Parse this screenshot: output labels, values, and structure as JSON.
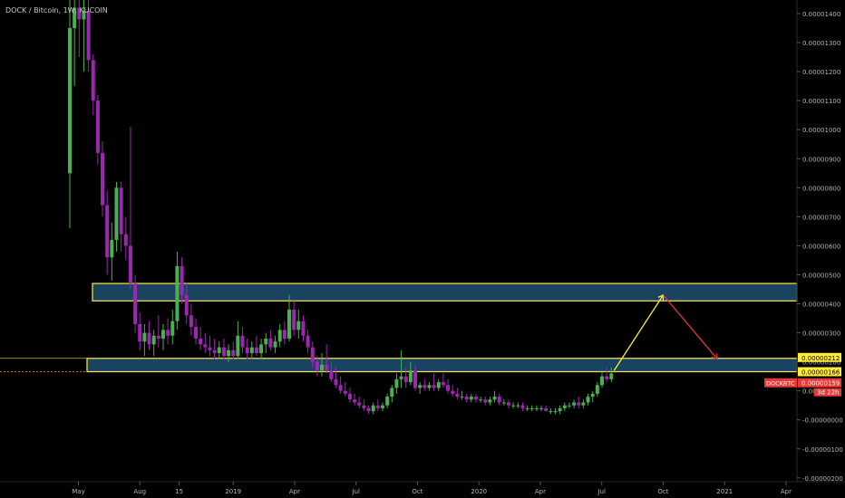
{
  "header": {
    "symbol_title": "DOCK / Bitcoin, 1W, KUCOIN"
  },
  "colors": {
    "background": "#000000",
    "bullish": "#4caf50",
    "bearish": "#9c27b0",
    "zone_fill": "#1f4f73",
    "zone_border": "#ffeb3b",
    "up_arrow": "#ffeb3b",
    "down_arrow": "#e53935",
    "price_tag_red": "#e53935",
    "price_tag_yellow": "#ffeb3b",
    "axis_text": "#b2b5be"
  },
  "chart_data": {
    "type": "candlestick",
    "title": "DOCK / Bitcoin, 1W, KUCOIN",
    "x_tick_labels": [
      "May",
      "Aug",
      "15",
      "2019",
      "Apr",
      "Jul",
      "Oct",
      "2020",
      "Apr",
      "Jul",
      "Oct",
      "2021",
      "Apr"
    ],
    "y_tick_labels": [
      "0.00001400",
      "0.00001300",
      "0.00001200",
      "0.00001100",
      "0.00001000",
      "0.00000900",
      "0.00000800",
      "0.00000700",
      "0.00000600",
      "0.00000500",
      "0.00000400",
      "0.00000300",
      "0.00000200",
      "0.00000100",
      "-0.00000000",
      "-0.00000100",
      "-0.00000200"
    ],
    "ylim": [
      -2.2e-06,
      1.45e-05
    ],
    "price_labels": {
      "zone_top": "0.00000212",
      "zone_bottom": "0.00000166",
      "symbol": "DOCKBTC",
      "last_price": "0.00000159",
      "countdown": "3d 22h"
    },
    "zones": [
      {
        "low": 4.1e-06,
        "high": 4.7e-06
      },
      {
        "low": 1.66e-06,
        "high": 2.12e-06
      }
    ],
    "projection": [
      {
        "from_x": 2020.55,
        "from_y": 1.7e-06,
        "to_x": 2020.75,
        "to_y": 4.3e-06,
        "direction": "up"
      },
      {
        "from_x": 2020.75,
        "from_y": 4.3e-06,
        "to_x": 2020.97,
        "to_y": 2.1e-06,
        "direction": "down"
      }
    ],
    "candles": [
      {
        "x": 2018.335,
        "o": 8.5e-06,
        "h": 1.45e-05,
        "l": 6.6e-06,
        "c": 1.35e-05
      },
      {
        "x": 2018.354,
        "o": 1.35e-05,
        "h": 1.48e-05,
        "l": 1.15e-05,
        "c": 1.42e-05
      },
      {
        "x": 2018.373,
        "o": 1.42e-05,
        "h": 1.5e-05,
        "l": 1.25e-05,
        "c": 1.38e-05
      },
      {
        "x": 2018.392,
        "o": 1.38e-05,
        "h": 1.5e-05,
        "l": 1.2e-05,
        "c": 1.41e-05
      },
      {
        "x": 2018.411,
        "o": 1.41e-05,
        "h": 1.46e-05,
        "l": 1.2e-05,
        "c": 1.24e-05
      },
      {
        "x": 2018.43,
        "o": 1.24e-05,
        "h": 1.26e-05,
        "l": 1.05e-05,
        "c": 1.1e-05
      },
      {
        "x": 2018.449,
        "o": 1.1e-05,
        "h": 1.12e-05,
        "l": 8.8e-06,
        "c": 9.2e-06
      },
      {
        "x": 2018.468,
        "o": 9.2e-06,
        "h": 9.6e-06,
        "l": 7e-06,
        "c": 7.4e-06
      },
      {
        "x": 2018.487,
        "o": 7.4e-06,
        "h": 7.9e-06,
        "l": 5e-06,
        "c": 5.6e-06
      },
      {
        "x": 2018.506,
        "o": 5.6e-06,
        "h": 6.8e-06,
        "l": 4.8e-06,
        "c": 6.2e-06
      },
      {
        "x": 2018.525,
        "o": 6.2e-06,
        "h": 8.2e-06,
        "l": 5.8e-06,
        "c": 8e-06
      },
      {
        "x": 2018.544,
        "o": 8e-06,
        "h": 8.2e-06,
        "l": 5.8e-06,
        "c": 6.4e-06
      },
      {
        "x": 2018.563,
        "o": 6.4e-06,
        "h": 7e-06,
        "l": 5.5e-06,
        "c": 6e-06
      },
      {
        "x": 2018.582,
        "o": 6e-06,
        "h": 1.01e-05,
        "l": 4.5e-06,
        "c": 4.7e-06
      },
      {
        "x": 2018.601,
        "o": 4.7e-06,
        "h": 5e-06,
        "l": 3e-06,
        "c": 3.3e-06
      },
      {
        "x": 2018.62,
        "o": 3.3e-06,
        "h": 3.7e-06,
        "l": 2.4e-06,
        "c": 2.7e-06
      },
      {
        "x": 2018.639,
        "o": 2.7e-06,
        "h": 3.3e-06,
        "l": 2.2e-06,
        "c": 3e-06
      },
      {
        "x": 2018.658,
        "o": 3e-06,
        "h": 3.4e-06,
        "l": 2.4e-06,
        "c": 2.6e-06
      },
      {
        "x": 2018.677,
        "o": 2.6e-06,
        "h": 3.1e-06,
        "l": 2.2e-06,
        "c": 2.9e-06
      },
      {
        "x": 2018.696,
        "o": 2.9e-06,
        "h": 3.6e-06,
        "l": 2.5e-06,
        "c": 2.8e-06
      },
      {
        "x": 2018.715,
        "o": 2.8e-06,
        "h": 3.3e-06,
        "l": 2.4e-06,
        "c": 3.1e-06
      },
      {
        "x": 2018.734,
        "o": 3.1e-06,
        "h": 3.5e-06,
        "l": 2.6e-06,
        "c": 2.9e-06
      },
      {
        "x": 2018.753,
        "o": 2.9e-06,
        "h": 3.8e-06,
        "l": 2.6e-06,
        "c": 3.4e-06
      },
      {
        "x": 2018.772,
        "o": 3.4e-06,
        "h": 5.8e-06,
        "l": 3.1e-06,
        "c": 5.3e-06
      },
      {
        "x": 2018.791,
        "o": 5.3e-06,
        "h": 5.6e-06,
        "l": 4e-06,
        "c": 4.3e-06
      },
      {
        "x": 2018.81,
        "o": 4.3e-06,
        "h": 4.7e-06,
        "l": 3.3e-06,
        "c": 3.6e-06
      },
      {
        "x": 2018.829,
        "o": 3.6e-06,
        "h": 4e-06,
        "l": 2.9e-06,
        "c": 3.2e-06
      },
      {
        "x": 2018.848,
        "o": 3.2e-06,
        "h": 3.5e-06,
        "l": 2.6e-06,
        "c": 2.8e-06
      },
      {
        "x": 2018.867,
        "o": 2.8e-06,
        "h": 3.2e-06,
        "l": 2.4e-06,
        "c": 2.6e-06
      },
      {
        "x": 2018.886,
        "o": 2.6e-06,
        "h": 3e-06,
        "l": 2.3e-06,
        "c": 2.5e-06
      },
      {
        "x": 2018.905,
        "o": 2.5e-06,
        "h": 2.9e-06,
        "l": 2.2e-06,
        "c": 2.4e-06
      },
      {
        "x": 2018.924,
        "o": 2.4e-06,
        "h": 2.8e-06,
        "l": 2.1e-06,
        "c": 2.3e-06
      },
      {
        "x": 2018.943,
        "o": 2.3e-06,
        "h": 2.7e-06,
        "l": 2.1e-06,
        "c": 2.5e-06
      },
      {
        "x": 2018.962,
        "o": 2.5e-06,
        "h": 2.8e-06,
        "l": 2.1e-06,
        "c": 2.2e-06
      },
      {
        "x": 2018.981,
        "o": 2.2e-06,
        "h": 2.6e-06,
        "l": 2e-06,
        "c": 2.4e-06
      },
      {
        "x": 2019.0,
        "o": 2.4e-06,
        "h": 2.7e-06,
        "l": 2.1e-06,
        "c": 2.2e-06
      },
      {
        "x": 2019.019,
        "o": 2.2e-06,
        "h": 3.4e-06,
        "l": 2.1e-06,
        "c": 2.9e-06
      },
      {
        "x": 2019.038,
        "o": 2.9e-06,
        "h": 3.2e-06,
        "l": 2.3e-06,
        "c": 2.5e-06
      },
      {
        "x": 2019.057,
        "o": 2.5e-06,
        "h": 2.8e-06,
        "l": 2.1e-06,
        "c": 2.3e-06
      },
      {
        "x": 2019.076,
        "o": 2.3e-06,
        "h": 2.7e-06,
        "l": 2.1e-06,
        "c": 2.5e-06
      },
      {
        "x": 2019.095,
        "o": 2.5e-06,
        "h": 2.9e-06,
        "l": 2.2e-06,
        "c": 2.3e-06
      },
      {
        "x": 2019.114,
        "o": 2.3e-06,
        "h": 2.8e-06,
        "l": 2.1e-06,
        "c": 2.6e-06
      },
      {
        "x": 2019.133,
        "o": 2.6e-06,
        "h": 3e-06,
        "l": 2.3e-06,
        "c": 2.8e-06
      },
      {
        "x": 2019.152,
        "o": 2.8e-06,
        "h": 3.1e-06,
        "l": 2.4e-06,
        "c": 2.5e-06
      },
      {
        "x": 2019.171,
        "o": 2.5e-06,
        "h": 2.9e-06,
        "l": 2.3e-06,
        "c": 2.7e-06
      },
      {
        "x": 2019.19,
        "o": 2.7e-06,
        "h": 3.3e-06,
        "l": 2.5e-06,
        "c": 3.1e-06
      },
      {
        "x": 2019.209,
        "o": 3.1e-06,
        "h": 3.4e-06,
        "l": 2.6e-06,
        "c": 2.8e-06
      },
      {
        "x": 2019.228,
        "o": 2.8e-06,
        "h": 4.3e-06,
        "l": 2.7e-06,
        "c": 3.8e-06
      },
      {
        "x": 2019.247,
        "o": 3.8e-06,
        "h": 4.1e-06,
        "l": 2.9e-06,
        "c": 3.1e-06
      },
      {
        "x": 2019.266,
        "o": 3.1e-06,
        "h": 3.8e-06,
        "l": 2.8e-06,
        "c": 3.4e-06
      },
      {
        "x": 2019.285,
        "o": 3.4e-06,
        "h": 3.6e-06,
        "l": 2.7e-06,
        "c": 2.9e-06
      },
      {
        "x": 2019.304,
        "o": 2.9e-06,
        "h": 3.1e-06,
        "l": 2.3e-06,
        "c": 2.5e-06
      },
      {
        "x": 2019.323,
        "o": 2.5e-06,
        "h": 2.7e-06,
        "l": 1.8e-06,
        "c": 2e-06
      },
      {
        "x": 2019.342,
        "o": 2e-06,
        "h": 2.2e-06,
        "l": 1.5e-06,
        "c": 1.7e-06
      },
      {
        "x": 2019.361,
        "o": 1.7e-06,
        "h": 2.3e-06,
        "l": 1.5e-06,
        "c": 1.9e-06
      },
      {
        "x": 2019.38,
        "o": 1.9e-06,
        "h": 2.6e-06,
        "l": 1.6e-06,
        "c": 1.7e-06
      },
      {
        "x": 2019.399,
        "o": 1.7e-06,
        "h": 2e-06,
        "l": 1.3e-06,
        "c": 1.4e-06
      },
      {
        "x": 2019.418,
        "o": 1.4e-06,
        "h": 1.8e-06,
        "l": 1.1e-06,
        "c": 1.2e-06
      },
      {
        "x": 2019.437,
        "o": 1.2e-06,
        "h": 1.5e-06,
        "l": 9e-07,
        "c": 1e-06
      },
      {
        "x": 2019.456,
        "o": 1e-06,
        "h": 1.3e-06,
        "l": 8e-07,
        "c": 9e-07
      },
      {
        "x": 2019.475,
        "o": 9e-07,
        "h": 1.1e-06,
        "l": 6e-07,
        "c": 7e-07
      },
      {
        "x": 2019.494,
        "o": 7e-07,
        "h": 9e-07,
        "l": 5e-07,
        "c": 6e-07
      },
      {
        "x": 2019.513,
        "o": 6e-07,
        "h": 8e-07,
        "l": 4e-07,
        "c": 5e-07
      },
      {
        "x": 2019.532,
        "o": 5e-07,
        "h": 7e-07,
        "l": 3e-07,
        "c": 4e-07
      },
      {
        "x": 2019.551,
        "o": 4e-07,
        "h": 5e-07,
        "l": 2e-07,
        "c": 3e-07
      },
      {
        "x": 2019.57,
        "o": 3e-07,
        "h": 6e-07,
        "l": 2e-07,
        "c": 5e-07
      },
      {
        "x": 2019.589,
        "o": 5e-07,
        "h": 7e-07,
        "l": 3e-07,
        "c": 4e-07
      },
      {
        "x": 2019.608,
        "o": 4e-07,
        "h": 6e-07,
        "l": 3e-07,
        "c": 5e-07
      },
      {
        "x": 2019.627,
        "o": 5e-07,
        "h": 9e-07,
        "l": 4e-07,
        "c": 8e-07
      },
      {
        "x": 2019.646,
        "o": 8e-07,
        "h": 1.2e-06,
        "l": 6e-07,
        "c": 1.1e-06
      },
      {
        "x": 2019.665,
        "o": 1.1e-06,
        "h": 1.6e-06,
        "l": 9e-07,
        "c": 1.4e-06
      },
      {
        "x": 2019.684,
        "o": 1.4e-06,
        "h": 2.4e-06,
        "l": 1.1e-06,
        "c": 1.5e-06
      },
      {
        "x": 2019.703,
        "o": 1.5e-06,
        "h": 1.8e-06,
        "l": 1.1e-06,
        "c": 1.3e-06
      },
      {
        "x": 2019.722,
        "o": 1.3e-06,
        "h": 2e-06,
        "l": 1.2e-06,
        "c": 1.7e-06
      },
      {
        "x": 2019.741,
        "o": 1.7e-06,
        "h": 1.9e-06,
        "l": 1e-06,
        "c": 1.1e-06
      },
      {
        "x": 2019.76,
        "o": 1.1e-06,
        "h": 1.3e-06,
        "l": 9e-07,
        "c": 1.2e-06
      },
      {
        "x": 2019.779,
        "o": 1.2e-06,
        "h": 1.4e-06,
        "l": 1e-06,
        "c": 1.1e-06
      },
      {
        "x": 2019.798,
        "o": 1.1e-06,
        "h": 1.3e-06,
        "l": 1e-06,
        "c": 1.2e-06
      },
      {
        "x": 2019.817,
        "o": 1.2e-06,
        "h": 1.6e-06,
        "l": 1e-06,
        "c": 1.1e-06
      },
      {
        "x": 2019.836,
        "o": 1.1e-06,
        "h": 1.4e-06,
        "l": 1e-06,
        "c": 1.3e-06
      },
      {
        "x": 2019.855,
        "o": 1.3e-06,
        "h": 1.6e-06,
        "l": 1.1e-06,
        "c": 1.2e-06
      },
      {
        "x": 2019.874,
        "o": 1.2e-06,
        "h": 1.4e-06,
        "l": 9e-07,
        "c": 1e-06
      },
      {
        "x": 2019.893,
        "o": 1e-06,
        "h": 1.2e-06,
        "l": 8e-07,
        "c": 9e-07
      },
      {
        "x": 2019.912,
        "o": 9e-07,
        "h": 1.1e-06,
        "l": 7e-07,
        "c": 8e-07
      },
      {
        "x": 2019.931,
        "o": 8e-07,
        "h": 1e-06,
        "l": 7e-07,
        "c": 8e-07
      },
      {
        "x": 2019.95,
        "o": 8e-07,
        "h": 9e-07,
        "l": 6e-07,
        "c": 7e-07
      },
      {
        "x": 2019.969,
        "o": 7e-07,
        "h": 9e-07,
        "l": 6e-07,
        "c": 8e-07
      },
      {
        "x": 2019.988,
        "o": 8e-07,
        "h": 9e-07,
        "l": 6e-07,
        "c": 7e-07
      },
      {
        "x": 2020.007,
        "o": 7e-07,
        "h": 8e-07,
        "l": 6e-07,
        "c": 7e-07
      },
      {
        "x": 2020.026,
        "o": 7e-07,
        "h": 8e-07,
        "l": 5e-07,
        "c": 6e-07
      },
      {
        "x": 2020.045,
        "o": 6e-07,
        "h": 8e-07,
        "l": 5e-07,
        "c": 7e-07
      },
      {
        "x": 2020.064,
        "o": 7e-07,
        "h": 1e-06,
        "l": 6e-07,
        "c": 8e-07
      },
      {
        "x": 2020.083,
        "o": 8e-07,
        "h": 9e-07,
        "l": 5e-07,
        "c": 6e-07
      },
      {
        "x": 2020.102,
        "o": 6e-07,
        "h": 7e-07,
        "l": 5e-07,
        "c": 6e-07
      },
      {
        "x": 2020.121,
        "o": 6e-07,
        "h": 7e-07,
        "l": 4e-07,
        "c": 5e-07
      },
      {
        "x": 2020.14,
        "o": 5e-07,
        "h": 6e-07,
        "l": 4e-07,
        "c": 5e-07
      },
      {
        "x": 2020.159,
        "o": 5e-07,
        "h": 6e-07,
        "l": 4e-07,
        "c": 5e-07
      },
      {
        "x": 2020.178,
        "o": 5e-07,
        "h": 6e-07,
        "l": 3e-07,
        "c": 4e-07
      },
      {
        "x": 2020.197,
        "o": 4e-07,
        "h": 5e-07,
        "l": 3e-07,
        "c": 4e-07
      },
      {
        "x": 2020.216,
        "o": 4e-07,
        "h": 5e-07,
        "l": 3e-07,
        "c": 4e-07
      },
      {
        "x": 2020.235,
        "o": 4e-07,
        "h": 5e-07,
        "l": 3e-07,
        "c": 4e-07
      },
      {
        "x": 2020.254,
        "o": 4e-07,
        "h": 5e-07,
        "l": 3e-07,
        "c": 4e-07
      },
      {
        "x": 2020.273,
        "o": 4e-07,
        "h": 5e-07,
        "l": 3e-07,
        "c": 3e-07
      },
      {
        "x": 2020.292,
        "o": 3e-07,
        "h": 4e-07,
        "l": 2e-07,
        "c": 3e-07
      },
      {
        "x": 2020.311,
        "o": 3e-07,
        "h": 4e-07,
        "l": 2e-07,
        "c": 3e-07
      },
      {
        "x": 2020.33,
        "o": 3e-07,
        "h": 5e-07,
        "l": 2e-07,
        "c": 4e-07
      },
      {
        "x": 2020.349,
        "o": 4e-07,
        "h": 6e-07,
        "l": 3e-07,
        "c": 5e-07
      },
      {
        "x": 2020.368,
        "o": 5e-07,
        "h": 6e-07,
        "l": 4e-07,
        "c": 5e-07
      },
      {
        "x": 2020.387,
        "o": 5e-07,
        "h": 7e-07,
        "l": 4e-07,
        "c": 6e-07
      },
      {
        "x": 2020.406,
        "o": 6e-07,
        "h": 8e-07,
        "l": 4e-07,
        "c": 5e-07
      },
      {
        "x": 2020.425,
        "o": 5e-07,
        "h": 7e-07,
        "l": 4e-07,
        "c": 6e-07
      },
      {
        "x": 2020.444,
        "o": 6e-07,
        "h": 9e-07,
        "l": 5e-07,
        "c": 8e-07
      },
      {
        "x": 2020.463,
        "o": 8e-07,
        "h": 1e-06,
        "l": 6e-07,
        "c": 9e-07
      },
      {
        "x": 2020.482,
        "o": 9e-07,
        "h": 1.3e-06,
        "l": 8e-07,
        "c": 1.2e-06
      },
      {
        "x": 2020.501,
        "o": 1.2e-06,
        "h": 1.7e-06,
        "l": 1.1e-06,
        "c": 1.5e-06
      },
      {
        "x": 2020.52,
        "o": 1.5e-06,
        "h": 1.8e-06,
        "l": 1.3e-06,
        "c": 1.4e-06
      },
      {
        "x": 2020.539,
        "o": 1.4e-06,
        "h": 1.8e-06,
        "l": 1.3e-06,
        "c": 1.6e-06
      }
    ]
  }
}
